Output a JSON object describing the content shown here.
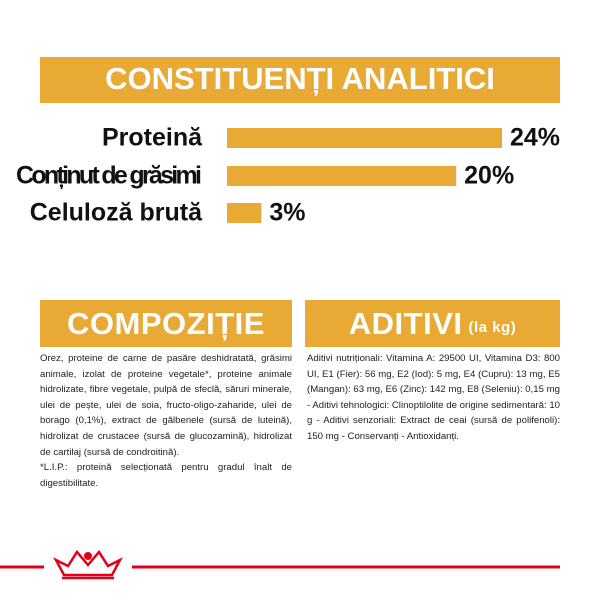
{
  "chart_data": {
    "type": "bar",
    "title": "CONSTITUENȚI ANALITICI",
    "categories": [
      "Proteină",
      "Conținut de grăsimi",
      "Celuloză brută"
    ],
    "values": [
      24,
      20,
      3
    ],
    "value_labels": [
      "24%",
      "20%",
      "3%"
    ],
    "color": "#e8a935"
  },
  "sections": [
    {
      "title": "COMPOZIȚIE",
      "text": "Orez, proteine de carne de pasăre deshidratată, grăsimi animale, izolat de proteine vegetale*, proteine animale hidrolizate, fibre vegetale, pulpă de sfeclă, săruri minerale, ulei de pește, ulei de soia, fructo-oligo-zaharide, ulei de borago (0,1%), extract de gălbenele (sursă de luteină), hidrolizat de crustacee (sursă de glucozamină), hidrolizat de cartilaj (sursă de condroitină).\n*L.I.P.: proteină selecționată pentru gradul înalt de digestibilitate."
    },
    {
      "title": "ADITIVI",
      "subtitle": "(la kg)",
      "text": "Aditivi nutriționali: Vitamina A: 29500 UI, Vitamina D3: 800 UI, E1 (Fier): 56 mg, E2 (Iod): 5 mg, E4 (Cupru): 13 mg, E5 (Mangan): 63 mg, E6 (Zinc): 142 mg, E8 (Seleniu): 0,15 mg - Aditivi tehnologici: Clinoptilolite de origine sedimentară: 10 g - Aditivi senzoriali: Extract de ceai (sursă de polifenoli): 150 mg - Conservanți - Antioxidanți."
    }
  ]
}
